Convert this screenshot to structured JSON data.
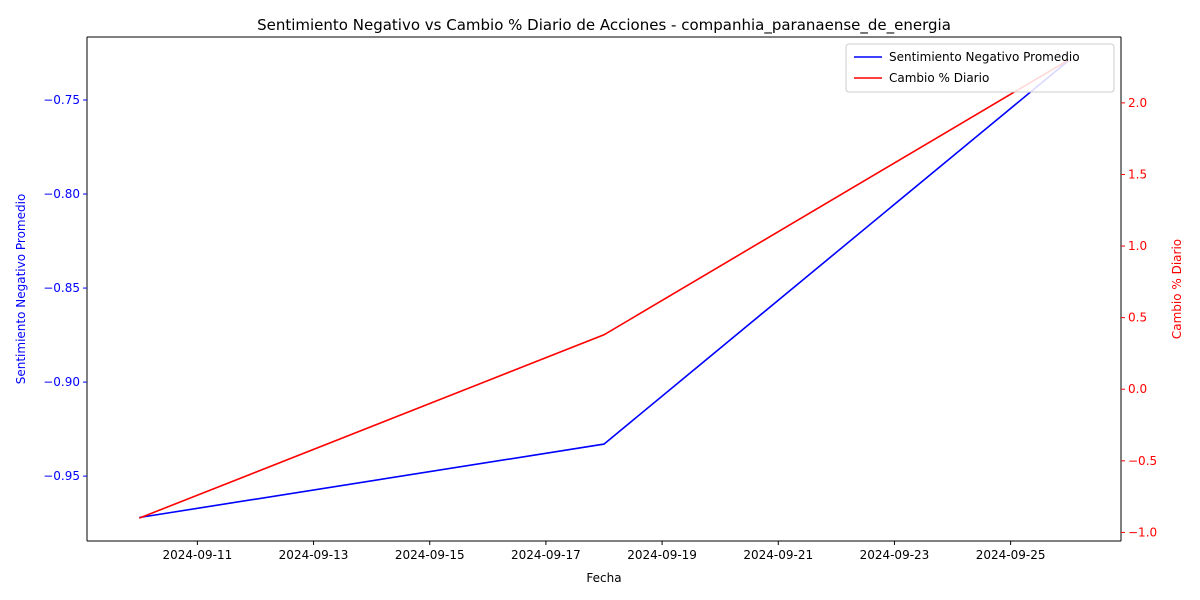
{
  "chart_data": {
    "type": "line",
    "title": "Sentimiento Negativo vs Cambio % Diario de Acciones - companhia_paranaense_de_energia",
    "xlabel": "Fecha",
    "ylabel_left": "Sentimiento Negativo Promedio",
    "ylabel_right": "Cambio % Diario",
    "x": [
      "2024-09-10",
      "2024-09-18",
      "2024-09-26"
    ],
    "xlim": [
      "2024-09-09.1",
      "2024-09-26.9"
    ],
    "x_ticks": [
      "2024-09-11",
      "2024-09-13",
      "2024-09-15",
      "2024-09-17",
      "2024-09-19",
      "2024-09-21",
      "2024-09-23",
      "2024-09-25"
    ],
    "ylim_left": [
      -0.9845,
      -0.7165
    ],
    "ylim_right": [
      -1.06,
      2.46
    ],
    "y_ticks_left": [
      -0.95,
      -0.9,
      -0.85,
      -0.8,
      -0.75
    ],
    "y_ticks_right": [
      -1.0,
      -0.5,
      0.0,
      0.5,
      1.0,
      1.5,
      2.0
    ],
    "series": [
      {
        "name": "Sentimiento Negativo Promedio",
        "axis": "left",
        "color": "#0000ff",
        "values": [
          -0.972,
          -0.933,
          -0.729
        ]
      },
      {
        "name": "Cambio % Diario",
        "axis": "right",
        "color": "#ff0000",
        "values": [
          -0.9,
          0.38,
          2.3
        ]
      }
    ],
    "legend": "top-right",
    "grid": false,
    "colors": {
      "left_axis": "#0000ff",
      "right_axis": "#ff0000",
      "frame": "#000000"
    }
  }
}
